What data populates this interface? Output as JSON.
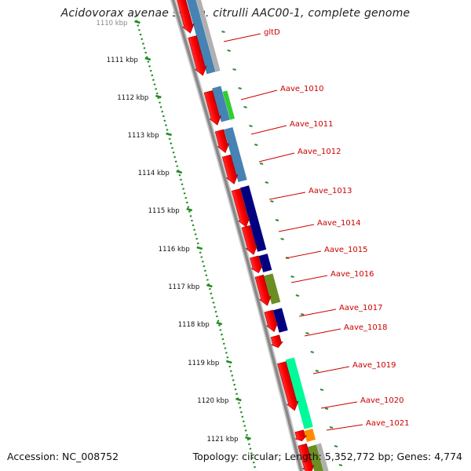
{
  "title": "Acidovorax avenae subsp. citrulli AAC00-1, complete genome",
  "footer": {
    "accession": "Accession: NC_008752",
    "stats": "Topology: circular; Length: 5,352,772 bp; Genes: 4,774"
  },
  "ruler": {
    "unit": "kbp",
    "labels": [
      "1110 kbp",
      "1111 kbp",
      "1112 kbp",
      "1113 kbp",
      "1114 kbp",
      "1115 kbp",
      "1116 kbp",
      "1117 kbp",
      "1118 kbp",
      "1119 kbp",
      "1120 kbp",
      "1121 kbp"
    ]
  },
  "colors": {
    "backbone": "#888888",
    "label_text": "#cc0000",
    "label_line": "#cc0000",
    "ruler_dots": "#228b22"
  },
  "genes": [
    {
      "name": "gltD",
      "color": "#cc0000"
    },
    {
      "name": "Aave_1010",
      "color": "#cc0000"
    },
    {
      "name": "Aave_1011",
      "color": "#cc0000"
    },
    {
      "name": "Aave_1012",
      "color": "#cc0000"
    },
    {
      "name": "Aave_1013",
      "color": "#cc0000"
    },
    {
      "name": "Aave_1014",
      "color": "#cc0000"
    },
    {
      "name": "Aave_1015",
      "color": "#cc0000"
    },
    {
      "name": "Aave_1016",
      "color": "#cc0000"
    },
    {
      "name": "Aave_1017",
      "color": "#cc0000"
    },
    {
      "name": "Aave_1018",
      "color": "#cc0000"
    },
    {
      "name": "Aave_1019",
      "color": "#cc0000"
    },
    {
      "name": "Aave_1020",
      "color": "#cc0000"
    },
    {
      "name": "Aave_1021",
      "color": "#cc0000"
    }
  ],
  "cog_colors": {
    "steelblue": "#4682b4",
    "navy": "#000080",
    "olive": "#6b8e23",
    "green": "#32cd32",
    "aquamarine": "#00fa9a",
    "orange": "#ff8c00",
    "grey": "#b0b0b0",
    "gene_red": "#ff0000"
  }
}
